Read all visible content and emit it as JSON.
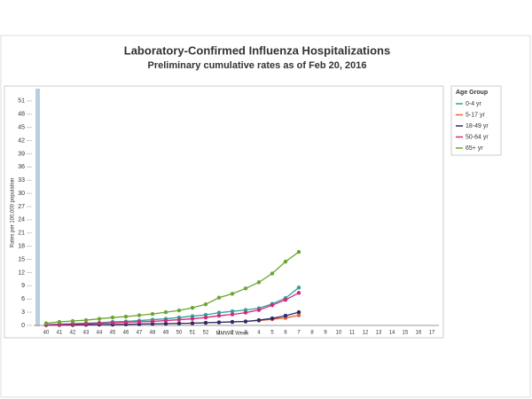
{
  "chart_data": {
    "type": "line",
    "title": "Laboratory-Confirmed Influenza Hospitalizations",
    "subtitle": "Preliminary cumulative rates as of Feb 20, 2016",
    "x_label": "MMWR Week",
    "y_label": "Rates per 100,000 population",
    "legend_title": "Age Group",
    "legend_position": "right",
    "categories": [
      "40",
      "41",
      "42",
      "43",
      "44",
      "45",
      "46",
      "47",
      "48",
      "49",
      "50",
      "51",
      "52",
      "1",
      "2",
      "3",
      "4",
      "5",
      "6",
      "7",
      "8",
      "9",
      "10",
      "11",
      "12",
      "13",
      "14",
      "15",
      "16",
      "17"
    ],
    "ylim": [
      0,
      54
    ],
    "yticks": [
      0,
      3,
      6,
      9,
      12,
      15,
      18,
      21,
      24,
      27,
      30,
      33,
      36,
      39,
      42,
      45,
      48,
      51
    ],
    "series": [
      {
        "name": "0-4 yr",
        "color": "#2ea39a",
        "values": [
          0.2,
          0.3,
          0.4,
          0.5,
          0.6,
          0.8,
          0.9,
          1.1,
          1.3,
          1.5,
          1.8,
          2.1,
          2.4,
          2.9,
          3.2,
          3.5,
          3.9,
          4.9,
          6.2,
          8.6,
          null,
          null,
          null,
          null,
          null,
          null,
          null,
          null,
          null,
          null
        ]
      },
      {
        "name": "5-17 yr",
        "color": "#e8623a",
        "values": [
          0.05,
          0.1,
          0.1,
          0.15,
          0.2,
          0.2,
          0.25,
          0.3,
          0.35,
          0.4,
          0.45,
          0.5,
          0.6,
          0.7,
          0.8,
          0.9,
          1.1,
          1.4,
          1.7,
          2.3,
          null,
          null,
          null,
          null,
          null,
          null,
          null,
          null,
          null,
          null
        ]
      },
      {
        "name": "18-49 yr",
        "color": "#2b2a6b",
        "values": [
          0.05,
          0.1,
          0.1,
          0.15,
          0.2,
          0.2,
          0.25,
          0.3,
          0.35,
          0.4,
          0.45,
          0.5,
          0.6,
          0.7,
          0.8,
          0.9,
          1.2,
          1.6,
          2.2,
          3.0,
          null,
          null,
          null,
          null,
          null,
          null,
          null,
          null,
          null,
          null
        ]
      },
      {
        "name": "50-64 yr",
        "color": "#d4287c",
        "values": [
          0.1,
          0.2,
          0.3,
          0.4,
          0.5,
          0.6,
          0.7,
          0.8,
          0.9,
          1.1,
          1.3,
          1.5,
          1.8,
          2.2,
          2.5,
          2.9,
          3.5,
          4.6,
          5.8,
          7.4,
          null,
          null,
          null,
          null,
          null,
          null,
          null,
          null,
          null,
          null
        ]
      },
      {
        "name": "65+ yr",
        "color": "#6aa631",
        "values": [
          0.5,
          0.8,
          1.0,
          1.2,
          1.5,
          1.8,
          2.0,
          2.3,
          2.6,
          3.0,
          3.4,
          4.0,
          4.8,
          6.3,
          7.2,
          8.4,
          9.8,
          11.8,
          14.5,
          16.7,
          null,
          null,
          null,
          null,
          null,
          null,
          null,
          null,
          null,
          null
        ]
      }
    ]
  }
}
